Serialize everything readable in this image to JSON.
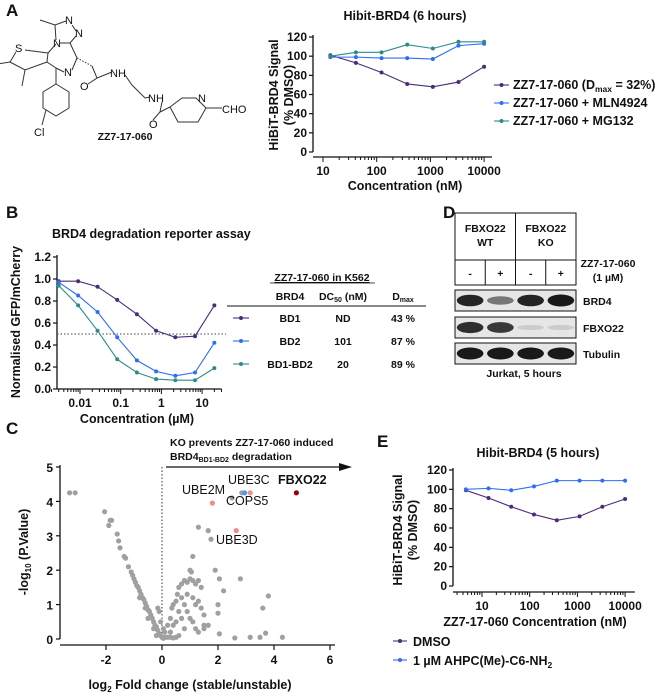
{
  "panels": {
    "A": {
      "label": "A",
      "compound_label": "ZZ7-17-060",
      "atoms": [
        "N",
        "N",
        "N",
        "S",
        "N",
        "NH",
        "O",
        "NH",
        "O",
        "N",
        "CHO",
        "Cl"
      ]
    },
    "B": {
      "label": "B",
      "table": {
        "title": "ZZ7-17-060  in K562",
        "headers": {
          "brd4": "BRD4",
          "dc50_main": "DC",
          "dc50_sub": "50",
          "dc50_unit": " (nM)",
          "dmax_main": "D",
          "dmax_sub": "max"
        },
        "rows": [
          {
            "construct": "BD1",
            "dc50": "ND",
            "dmax": "43 %"
          },
          {
            "construct": "BD2",
            "dc50": "101",
            "dmax": "87 %"
          },
          {
            "construct": "BD1-BD2",
            "dc50": "20",
            "dmax": "89 %"
          }
        ]
      }
    },
    "C": {
      "label": "C",
      "annotation_line1": "KO prevents ZZ7-17-060  induced",
      "annotation_line2_main": "BRD4",
      "annotation_line2_sub": "BD1-BD2",
      "annotation_line2_end": "  degradation"
    },
    "D": {
      "label": "D",
      "groups": [
        {
          "line1": "FBXO22",
          "line2": "WT"
        },
        {
          "line1": "FBXO22",
          "line2": "KO"
        }
      ],
      "treatments": [
        "-",
        "+",
        "-",
        "+"
      ],
      "treatment_label_1": "ZZ7-17-060",
      "treatment_label_2": "(1 µM)",
      "blots": [
        {
          "name": "BRD4",
          "intensities": [
            0.95,
            0.55,
            0.95,
            1.0
          ]
        },
        {
          "name": "FBXO22",
          "intensities": [
            0.9,
            0.85,
            0.15,
            0.15
          ]
        },
        {
          "name": "Tubulin",
          "intensities": [
            1.0,
            1.0,
            1.0,
            1.0
          ]
        }
      ],
      "caption": "Jurkat, 5 hours"
    },
    "E": {
      "label": "E"
    }
  },
  "colors": {
    "purple": "#4b2c7a",
    "blue": "#2f6ef2",
    "teal": "#2e8b8b",
    "grey": "#a0a0a0",
    "pink": "#f28b8b",
    "darkred": "#a00000",
    "lightblue": "#4a9cf0"
  },
  "chart_data": [
    {
      "id": "A",
      "type": "line",
      "title": "Hibit-BRD4 (6 hours)",
      "xlabel": "Concentration (nM)",
      "ylabel_line1": "HiBiT-BRD4 Signal",
      "ylabel_line2": "(% DMSO)",
      "xscale": "log",
      "xlim": [
        10,
        14000
      ],
      "ylim": [
        0,
        120
      ],
      "xticks": [
        10,
        100,
        1000,
        10000
      ],
      "yticks": [
        0,
        20,
        40,
        60,
        80,
        100,
        120
      ],
      "x": [
        13.7,
        41,
        123,
        370,
        1111,
        3333,
        10000
      ],
      "legend_position": "right",
      "series": [
        {
          "name": "ZZ7-17-060 (Dmax = 32%)",
          "name_parts": [
            "ZZ7-17-060 (D",
            "max",
            " = 32%)"
          ],
          "color": "#4b2c7a",
          "values": [
            101,
            93,
            83,
            71,
            68,
            73,
            89
          ]
        },
        {
          "name": "ZZ7-17-060 + MLN4924",
          "name_parts": [
            "ZZ7-17-060 + MLN4924",
            "",
            ""
          ],
          "color": "#2f6ef2",
          "values": [
            99,
            99,
            98,
            98,
            97,
            111,
            113
          ]
        },
        {
          "name": "ZZ7-17-060 + MG132",
          "name_parts": [
            "ZZ7-17-060 + MG132",
            "",
            ""
          ],
          "color": "#2e8b8b",
          "values": [
            100,
            104,
            104,
            112,
            108,
            115,
            115
          ]
        }
      ]
    },
    {
      "id": "B",
      "type": "line",
      "title": "BRD4 degradation reporter assay",
      "xlabel": "Concentration (µM)",
      "ylabel": "Normalised GFP/mCherry",
      "xscale": "log",
      "xlim": [
        0.002,
        30
      ],
      "ylim": [
        0,
        1.2
      ],
      "xticks": [
        0.01,
        0.1,
        1,
        10
      ],
      "yticks": [
        0.0,
        0.2,
        0.4,
        0.6,
        0.8,
        1.0,
        1.2
      ],
      "reference_line": 0.5,
      "x": [
        0.003,
        0.009,
        0.027,
        0.082,
        0.25,
        0.74,
        2.2,
        6.7,
        20
      ],
      "series": [
        {
          "name": "BD1",
          "color": "#4b2c7a",
          "values": [
            0.98,
            0.98,
            0.93,
            0.81,
            0.68,
            0.53,
            0.47,
            0.48,
            0.76
          ]
        },
        {
          "name": "BD2",
          "color": "#2f6ef2",
          "values": [
            0.97,
            0.85,
            0.7,
            0.47,
            0.26,
            0.16,
            0.12,
            0.15,
            0.42
          ]
        },
        {
          "name": "BD1-BD2",
          "color": "#2e8b8b",
          "values": [
            0.94,
            0.76,
            0.53,
            0.27,
            0.15,
            0.09,
            0.08,
            0.08,
            0.19
          ]
        }
      ]
    },
    {
      "id": "C",
      "type": "scatter",
      "xlabel_main": "log",
      "xlabel_sub": "2",
      "xlabel_end": " Fold change (stable/unstable)",
      "ylabel_main": "-log",
      "ylabel_sub": "10",
      "ylabel_end": " (P.Value)",
      "xlim": [
        -3.6,
        6.2
      ],
      "ylim": [
        0,
        5
      ],
      "xticks": [
        -2,
        0,
        2,
        4,
        6
      ],
      "yticks": [
        0,
        1,
        2,
        3,
        4,
        5
      ],
      "reference_x": 0,
      "highlighted": [
        {
          "name": "FBXO22",
          "x": 4.8,
          "y": 4.25,
          "color": "#a00000"
        },
        {
          "name": "UBE3C",
          "x": 3.15,
          "y": 4.25,
          "color": "#f28b8b"
        },
        {
          "name": "COPS5",
          "x": 2.95,
          "y": 4.25,
          "color": "#4a9cf0"
        },
        {
          "name": "UBE2M",
          "x": 1.8,
          "y": 3.95,
          "color": "#f28b8b"
        },
        {
          "name": "UBE3D",
          "x": 2.65,
          "y": 3.15,
          "color": "#f28b8b"
        }
      ],
      "points": [
        [
          -3.3,
          4.25
        ],
        [
          -3.1,
          4.25
        ],
        [
          -2.05,
          3.7
        ],
        [
          -1.85,
          3.45
        ],
        [
          -1.9,
          3.3
        ],
        [
          -1.8,
          3.45
        ],
        [
          -1.6,
          3.05
        ],
        [
          -1.55,
          2.85
        ],
        [
          -1.5,
          2.65
        ],
        [
          -1.35,
          2.4
        ],
        [
          -1.3,
          2.35
        ],
        [
          -1.2,
          2.1
        ],
        [
          -1.1,
          1.95
        ],
        [
          -1.05,
          1.85
        ],
        [
          -1.0,
          1.75
        ],
        [
          -0.95,
          1.65
        ],
        [
          -0.9,
          1.55
        ],
        [
          -0.85,
          1.5
        ],
        [
          -0.8,
          1.4
        ],
        [
          -0.75,
          1.3
        ],
        [
          -0.7,
          1.2
        ],
        [
          -0.65,
          1.15
        ],
        [
          -0.6,
          1.05
        ],
        [
          -0.55,
          0.95
        ],
        [
          -0.5,
          0.85
        ],
        [
          -0.45,
          0.8
        ],
        [
          -0.4,
          0.7
        ],
        [
          -0.35,
          0.6
        ],
        [
          -0.3,
          0.5
        ],
        [
          -0.25,
          0.4
        ],
        [
          -0.2,
          0.35
        ],
        [
          -0.15,
          0.25
        ],
        [
          -0.1,
          0.15
        ],
        [
          -0.05,
          0.1
        ],
        [
          -0.6,
          0.9
        ],
        [
          -0.8,
          1.2
        ],
        [
          -0.5,
          0.6
        ],
        [
          -0.3,
          0.3
        ],
        [
          -0.2,
          0.1
        ],
        [
          -0.1,
          0.8
        ],
        [
          -0.05,
          0.5
        ],
        [
          -0.15,
          0.9
        ],
        [
          0,
          0.05
        ],
        [
          0.05,
          0.02
        ],
        [
          0.05,
          0.3
        ],
        [
          0.1,
          0.05
        ],
        [
          0.2,
          0.05
        ],
        [
          0.3,
          0.05
        ],
        [
          0.4,
          0.03
        ],
        [
          0.5,
          0.05
        ],
        [
          0.1,
          0.2
        ],
        [
          0.2,
          0.4
        ],
        [
          0.3,
          0.6
        ],
        [
          0.35,
          0.9
        ],
        [
          0.4,
          1.0
        ],
        [
          0.5,
          1.1
        ],
        [
          0.55,
          1.3
        ],
        [
          0.6,
          1.5
        ],
        [
          0.7,
          1.6
        ],
        [
          0.8,
          1.7
        ],
        [
          0.9,
          1.65
        ],
        [
          1.0,
          1.75
        ],
        [
          1.1,
          1.7
        ],
        [
          1.2,
          1.6
        ],
        [
          1.3,
          1.7
        ],
        [
          0.7,
          1.2
        ],
        [
          0.8,
          1.0
        ],
        [
          0.9,
          0.8
        ],
        [
          1.0,
          0.6
        ],
        [
          1.1,
          0.5
        ],
        [
          1.2,
          0.3
        ],
        [
          1.3,
          0.2
        ],
        [
          0.6,
          0.8
        ],
        [
          0.5,
          0.5
        ],
        [
          0.4,
          0.4
        ],
        [
          0.3,
          0.2
        ],
        [
          0.9,
          1.3
        ],
        [
          1.1,
          1.2
        ],
        [
          1.3,
          1.1
        ],
        [
          1.4,
          0.9
        ],
        [
          1.5,
          0.7
        ],
        [
          1.5,
          0.4
        ],
        [
          1.4,
          1.5
        ],
        [
          1.2,
          1.0
        ],
        [
          0.8,
          0.3
        ],
        [
          0.6,
          0.1
        ],
        [
          0.7,
          0.6
        ],
        [
          1.3,
          3.25
        ],
        [
          1.65,
          3.15
        ],
        [
          1.75,
          2.9
        ],
        [
          2.5,
          4.1
        ],
        [
          2.85,
          4.25
        ],
        [
          1.1,
          2.4
        ],
        [
          1.0,
          2.0
        ],
        [
          1.05,
          1.95
        ],
        [
          1.9,
          2.0
        ],
        [
          2.05,
          1.75
        ],
        [
          2.8,
          1.75
        ],
        [
          2.2,
          1.4
        ],
        [
          3.8,
          1.25
        ],
        [
          3.6,
          0.9
        ],
        [
          2.0,
          1.0
        ],
        [
          2.0,
          0.75
        ],
        [
          1.65,
          0.4
        ],
        [
          2.05,
          0.15
        ],
        [
          2.6,
          0.03
        ],
        [
          3.15,
          0.05
        ],
        [
          3.5,
          0.05
        ],
        [
          3.7,
          0.17
        ],
        [
          4.3,
          0.05
        ],
        [
          1.5,
          0.3
        ]
      ]
    },
    {
      "id": "E",
      "type": "line",
      "title": "Hibit-BRD4 (5 hours)",
      "xlabel": "ZZ7-17-060 Concentration (nM)",
      "ylabel_line1": "HiBiT-BRD4 Signal",
      "ylabel_line2": "(% DMSO)",
      "xscale": "log",
      "xlim": [
        3,
        16000
      ],
      "ylim": [
        0,
        120
      ],
      "xticks": [
        10,
        100,
        1000,
        10000
      ],
      "yticks": [
        0,
        20,
        40,
        60,
        80,
        100,
        120
      ],
      "x": [
        4.6,
        13.7,
        41,
        123,
        370,
        1111,
        3333,
        10000
      ],
      "legend_position": "bottom",
      "series": [
        {
          "name": "DMSO",
          "name_parts": [
            "DMSO",
            ""
          ],
          "color": "#4b2c7a",
          "values": [
            99,
            91,
            82,
            74,
            68,
            72,
            82,
            90
          ]
        },
        {
          "name": "1 µM AHPC(Me)-C6-NH2",
          "name_parts": [
            "1 µM AHPC(Me)-C6-NH",
            "2"
          ],
          "color": "#2f6ef2",
          "values": [
            100,
            101,
            99,
            103,
            109,
            109,
            109,
            109
          ]
        }
      ]
    }
  ]
}
